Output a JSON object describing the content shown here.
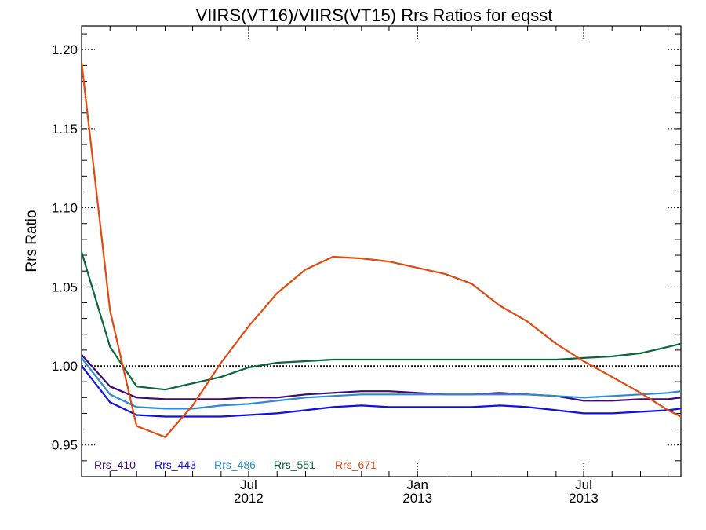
{
  "chart_data": {
    "type": "line",
    "title": "VIIRS(VT16)/VIIRS(VT15)  Rrs Ratios for eqsst",
    "ylabel": "Rrs Ratio",
    "xlabel": "",
    "ylim": [
      0.93,
      1.215
    ],
    "xlim": [
      "2012-01-01",
      "2013-10-15"
    ],
    "yticks": [
      "0.95",
      "1.00",
      "1.05",
      "1.10",
      "1.15",
      "1.20"
    ],
    "xticks": [
      {
        "date": "2012-07-01",
        "month": "Jul",
        "year": "2012"
      },
      {
        "date": "2013-01-01",
        "month": "Jan",
        "year": "2013"
      },
      {
        "date": "2013-07-01",
        "month": "Jul",
        "year": "2013"
      }
    ],
    "reference_line": 1.0,
    "legend_position": "bottom-left",
    "x": [
      "2012-01-01",
      "2012-02-01",
      "2012-03-01",
      "2012-04-01",
      "2012-05-01",
      "2012-06-01",
      "2012-07-01",
      "2012-08-01",
      "2012-09-01",
      "2012-10-01",
      "2012-11-01",
      "2012-12-01",
      "2013-01-01",
      "2013-02-01",
      "2013-03-01",
      "2013-04-01",
      "2013-05-01",
      "2013-06-01",
      "2013-07-01",
      "2013-08-01",
      "2013-09-01",
      "2013-10-01",
      "2013-10-15"
    ],
    "series": [
      {
        "name": "Rrs_410",
        "color": "#3c0a78",
        "values": [
          1.007,
          0.987,
          0.98,
          0.979,
          0.979,
          0.979,
          0.98,
          0.98,
          0.982,
          0.983,
          0.984,
          0.984,
          0.983,
          0.982,
          0.982,
          0.983,
          0.982,
          0.981,
          0.978,
          0.978,
          0.979,
          0.979,
          0.98
        ]
      },
      {
        "name": "Rrs_443",
        "color": "#1010e0",
        "values": [
          1.0,
          0.977,
          0.969,
          0.968,
          0.968,
          0.968,
          0.969,
          0.97,
          0.972,
          0.974,
          0.975,
          0.974,
          0.974,
          0.974,
          0.974,
          0.975,
          0.974,
          0.972,
          0.97,
          0.97,
          0.971,
          0.972,
          0.973
        ]
      },
      {
        "name": "Rrs_486",
        "color": "#2c8ad0",
        "values": [
          1.005,
          0.982,
          0.974,
          0.973,
          0.973,
          0.975,
          0.976,
          0.978,
          0.98,
          0.981,
          0.982,
          0.982,
          0.982,
          0.982,
          0.982,
          0.982,
          0.982,
          0.981,
          0.98,
          0.981,
          0.982,
          0.983,
          0.984
        ]
      },
      {
        "name": "Rrs_551",
        "color": "#0a6638",
        "values": [
          1.072,
          1.012,
          0.987,
          0.985,
          0.989,
          0.993,
          0.999,
          1.002,
          1.003,
          1.004,
          1.004,
          1.004,
          1.004,
          1.004,
          1.004,
          1.004,
          1.004,
          1.004,
          1.005,
          1.006,
          1.008,
          1.012,
          1.014
        ]
      },
      {
        "name": "Rrs_671",
        "color": "#e04a10",
        "values": [
          1.192,
          1.035,
          0.962,
          0.955,
          0.975,
          1.002,
          1.025,
          1.046,
          1.061,
          1.069,
          1.068,
          1.066,
          1.062,
          1.058,
          1.052,
          1.038,
          1.028,
          1.014,
          1.003,
          0.993,
          0.983,
          0.972,
          0.968
        ]
      }
    ]
  }
}
